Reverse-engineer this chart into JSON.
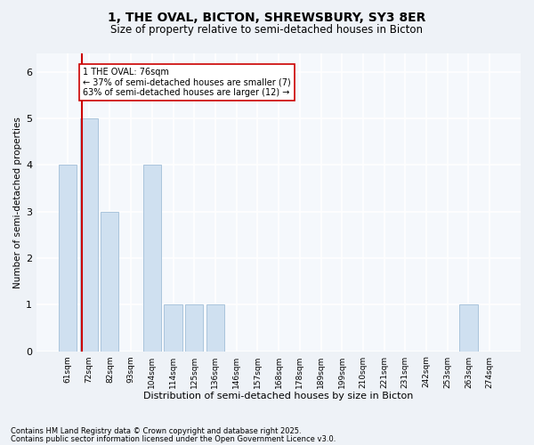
{
  "title1": "1, THE OVAL, BICTON, SHREWSBURY, SY3 8ER",
  "title2": "Size of property relative to semi-detached houses in Bicton",
  "xlabel": "Distribution of semi-detached houses by size in Bicton",
  "ylabel": "Number of semi-detached properties",
  "bins": [
    "61sqm",
    "72sqm",
    "82sqm",
    "93sqm",
    "104sqm",
    "114sqm",
    "125sqm",
    "136sqm",
    "146sqm",
    "157sqm",
    "168sqm",
    "178sqm",
    "189sqm",
    "199sqm",
    "210sqm",
    "221sqm",
    "231sqm",
    "242sqm",
    "253sqm",
    "263sqm",
    "274sqm"
  ],
  "values": [
    4,
    5,
    3,
    0,
    4,
    1,
    1,
    1,
    0,
    0,
    0,
    0,
    0,
    0,
    0,
    0,
    0,
    0,
    0,
    1,
    0
  ],
  "bar_color": "#cfe0f0",
  "bar_edge_color": "#aac4dc",
  "property_bin_index": 1,
  "red_line_color": "#cc0000",
  "annotation_text": "1 THE OVAL: 76sqm\n← 37% of semi-detached houses are smaller (7)\n63% of semi-detached houses are larger (12) →",
  "annotation_box_color": "white",
  "annotation_box_edge": "#cc0000",
  "ylim": [
    0,
    6.4
  ],
  "yticks": [
    0,
    1,
    2,
    3,
    4,
    5,
    6
  ],
  "footer1": "Contains HM Land Registry data © Crown copyright and database right 2025.",
  "footer2": "Contains public sector information licensed under the Open Government Licence v3.0.",
  "bg_color": "#eef2f7",
  "plot_bg_color": "#f5f8fc"
}
